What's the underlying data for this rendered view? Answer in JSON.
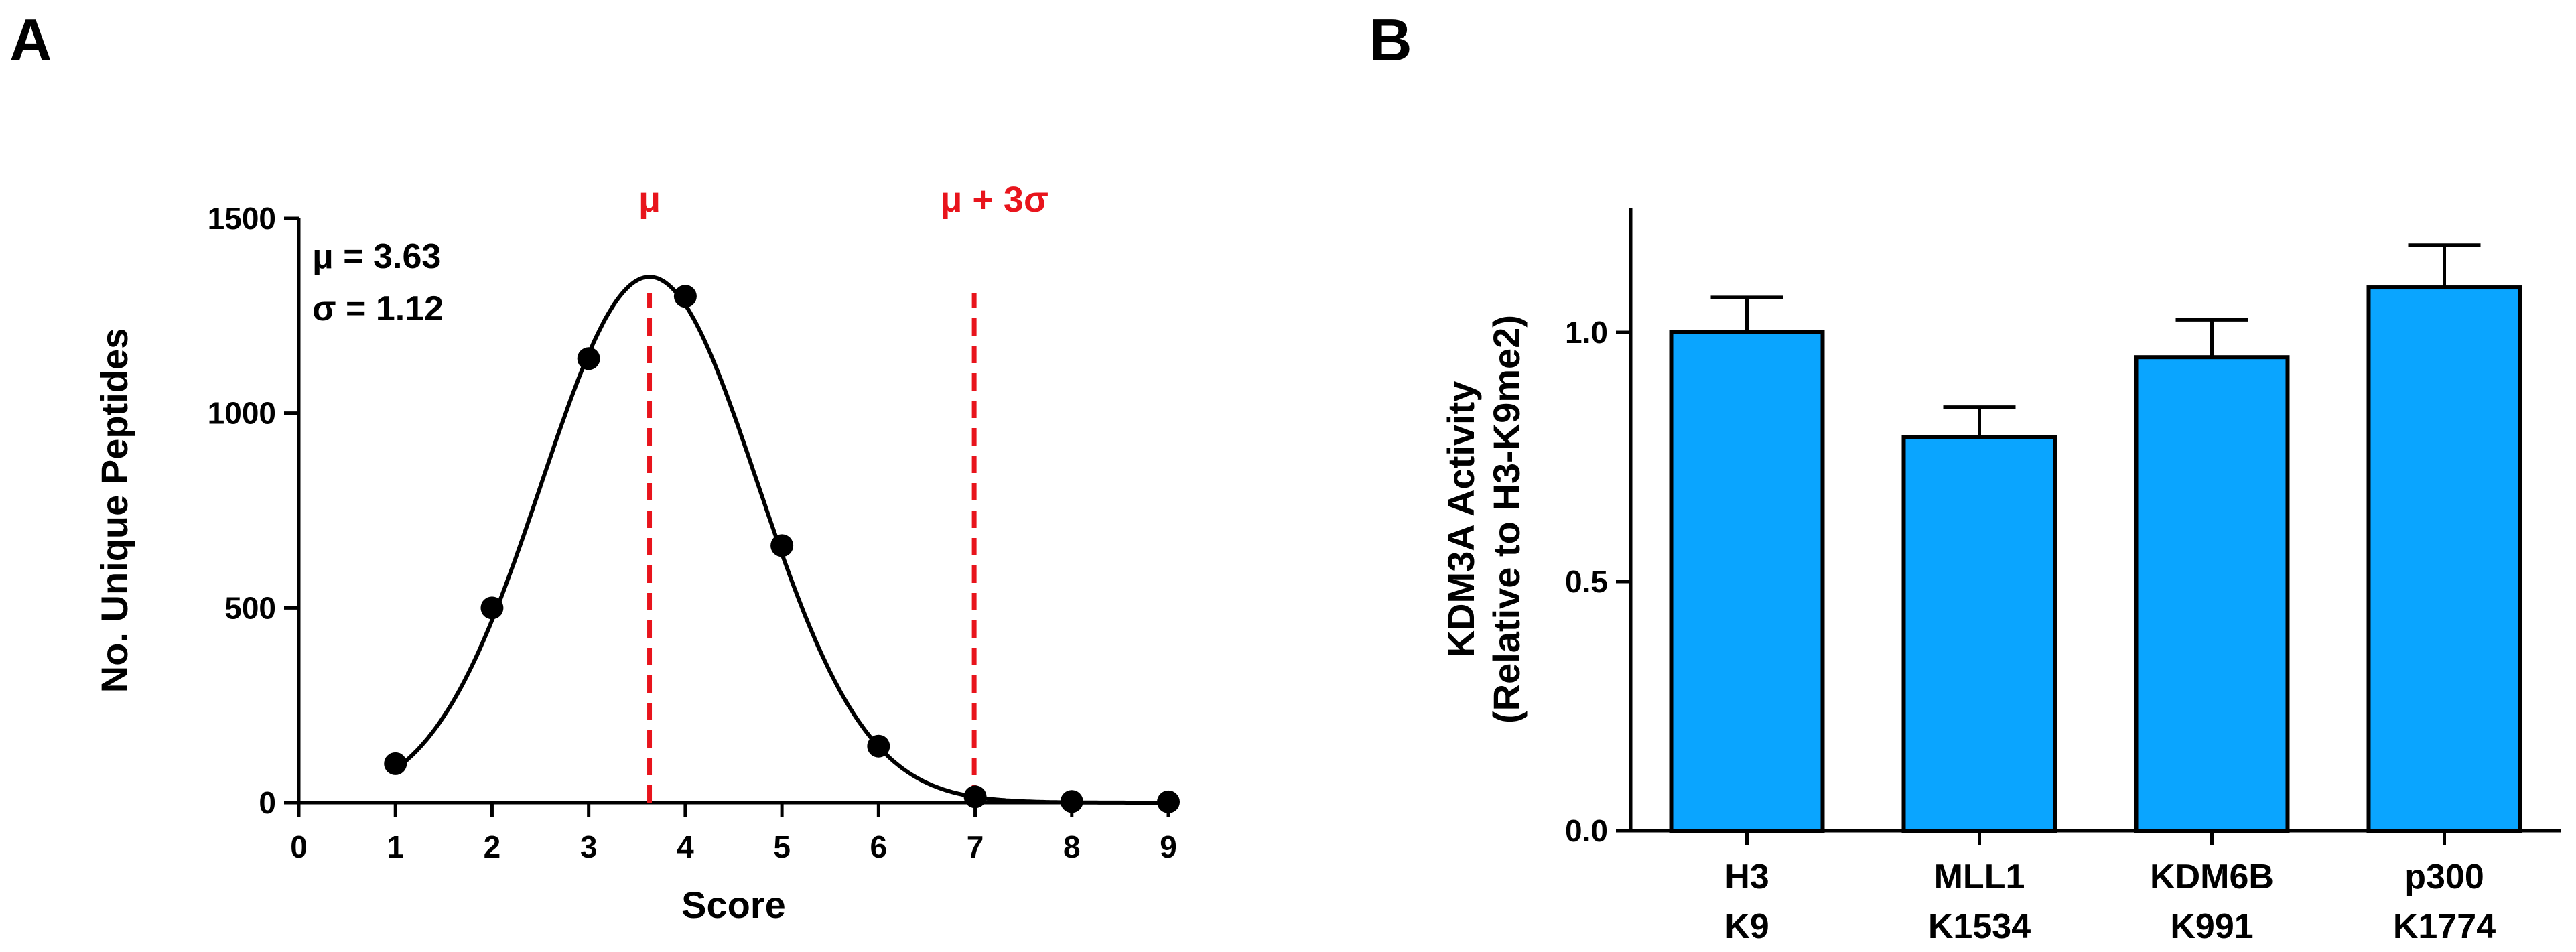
{
  "colors": {
    "axis": "#000000",
    "reference": "#e8141c",
    "bar_fill": "#0aa5ff",
    "point": "#000000"
  },
  "chart_data": [
    {
      "panel": "A",
      "type": "scatter",
      "title": "",
      "xlabel": "Score",
      "ylabel": "No. Unique Peptides",
      "xlim": [
        0,
        9
      ],
      "ylim": [
        0,
        1500
      ],
      "xticks": [
        0,
        1,
        2,
        3,
        4,
        5,
        6,
        7,
        8,
        9
      ],
      "yticks": [
        0,
        500,
        1000,
        1500
      ],
      "series": [
        {
          "name": "Unique peptides",
          "x": [
            1,
            2,
            3,
            4,
            5,
            6,
            7,
            8,
            9
          ],
          "y": [
            100,
            500,
            1140,
            1300,
            660,
            145,
            15,
            3,
            2
          ]
        }
      ],
      "fit": {
        "type": "gaussian",
        "mean": 3.63,
        "sd": 1.12,
        "amplitude": 1350
      },
      "annotations": {
        "mu_text": "μ = 3.63",
        "sigma_text": "σ = 1.12"
      },
      "reference_lines": [
        {
          "label": "μ",
          "x": 3.63
        },
        {
          "label": "μ + 3σ",
          "x": 6.99
        }
      ]
    },
    {
      "panel": "B",
      "type": "bar",
      "title": "",
      "xlabel": "",
      "ylabel": "KDM3A Activity",
      "ylabel2": "(Relative to H3-K9me2)",
      "ylim": [
        0,
        1.25
      ],
      "yticks": [
        "0.0",
        "0.5",
        "1.0"
      ],
      "categories": [
        [
          "H3",
          "K9"
        ],
        [
          "MLL1",
          "K1534"
        ],
        [
          "KDM6B",
          "K991"
        ],
        [
          "p300",
          "K1774"
        ]
      ],
      "values": [
        1.0,
        0.79,
        0.95,
        1.09
      ],
      "errors": [
        0.07,
        0.06,
        0.075,
        0.085
      ]
    }
  ]
}
